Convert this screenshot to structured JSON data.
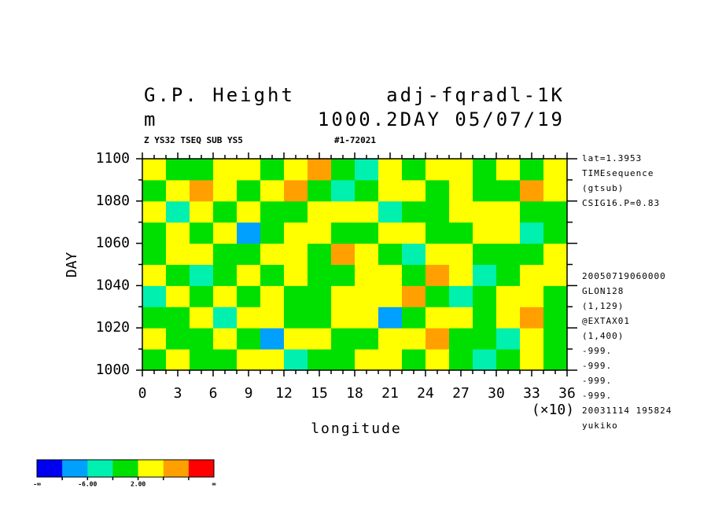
{
  "chart_data": {
    "type": "heatmap",
    "title": "G.P. Height",
    "title_right": "adj-fqradl-1K",
    "unit": "m",
    "subtitle_right": "1000.2DAY 05/07/19",
    "caption_left": "Z YS32 TSEQ SUB YS5",
    "caption_right": "#1-72021",
    "x_label": "longitude",
    "x_scale_label": "(×10)",
    "y_label": "DAY",
    "xlim": [
      0,
      36
    ],
    "ylim": [
      1000,
      1100
    ],
    "xticks": [
      0,
      3,
      6,
      9,
      12,
      15,
      18,
      21,
      24,
      27,
      30,
      33,
      36
    ],
    "xminorticks": [
      1,
      2,
      4,
      5,
      7,
      8,
      10,
      11,
      13,
      14,
      16,
      17,
      19,
      20,
      22,
      23,
      25,
      26,
      28,
      29,
      31,
      32,
      34,
      35
    ],
    "yticks": [
      1000,
      1020,
      1040,
      1060,
      1080,
      1100
    ],
    "yminorticks": [
      1010,
      1030,
      1050,
      1070,
      1090
    ],
    "x": [
      1,
      3,
      5,
      7,
      9,
      11,
      13,
      15,
      17,
      19,
      21,
      23,
      25,
      27,
      29,
      31,
      33,
      35
    ],
    "y": [
      1005,
      1015,
      1025,
      1035,
      1045,
      1055,
      1065,
      1075,
      1085,
      1095
    ],
    "z": [
      [
        1,
        3,
        -1,
        0,
        4,
        2,
        -3,
        1,
        0,
        3,
        5,
        -1,
        2,
        0,
        -4,
        1,
        3,
        0
      ],
      [
        3,
        -2,
        0,
        5,
        1,
        -7,
        2,
        4,
        0,
        -1,
        3,
        2,
        7,
        1,
        0,
        -3,
        4,
        1
      ],
      [
        0,
        1,
        4,
        -3,
        2,
        3,
        0,
        -1,
        5,
        2,
        -8,
        1,
        3,
        4,
        0,
        2,
        8,
        -1
      ],
      [
        -4,
        2,
        1,
        3,
        0,
        5,
        -2,
        1,
        3,
        4,
        2,
        7,
        0,
        -3,
        1,
        5,
        2,
        0
      ],
      [
        2,
        0,
        -6,
        1,
        4,
        -1,
        3,
        0,
        -2,
        5,
        3,
        1,
        8,
        2,
        -5,
        0,
        3,
        4
      ],
      [
        1,
        5,
        3,
        -2,
        0,
        2,
        4,
        -1,
        6,
        3,
        0,
        -3,
        2,
        5,
        1,
        -1,
        0,
        2
      ],
      [
        -1,
        2,
        0,
        4,
        -7,
        1,
        3,
        2,
        0,
        -2,
        4,
        5,
        1,
        0,
        3,
        2,
        -4,
        1
      ],
      [
        3,
        -3,
        2,
        1,
        5,
        0,
        -1,
        4,
        2,
        3,
        -6,
        1,
        0,
        4,
        2,
        5,
        1,
        -2
      ],
      [
        0,
        4,
        7,
        2,
        -1,
        3,
        8,
        0,
        -3,
        1,
        2,
        4,
        -1,
        3,
        0,
        1,
        6,
        2
      ],
      [
        2,
        1,
        -2,
        5,
        3,
        0,
        4,
        6,
        1,
        -4,
        3,
        0,
        5,
        2,
        -2,
        4,
        1,
        3
      ]
    ],
    "colorbar": {
      "levels": [
        -10,
        -6,
        -2,
        2,
        6,
        10
      ],
      "colors": [
        "#0000f0",
        "#00a0ff",
        "#00f0b0",
        "#00e000",
        "#ffff00",
        "#ffa000",
        "#ff0000"
      ],
      "tick_labels": [
        {
          "value": -6,
          "label": "-6.00"
        },
        {
          "value": 2,
          "label": "2.00"
        }
      ],
      "low_label": "-∞",
      "high_label": "∞"
    },
    "notes_top": [
      "lat=1.3953",
      "TIMEsequence",
      "(gtsub)",
      "CSIG16.P=0.83"
    ],
    "notes_bottom": [
      "20050719060000",
      "GLON128",
      "(1,129)",
      "@EXTAX01",
      "(1,400)",
      "-999.",
      "-999.",
      "-999.",
      "-999.",
      "20031114 195824",
      "yukiko"
    ]
  }
}
